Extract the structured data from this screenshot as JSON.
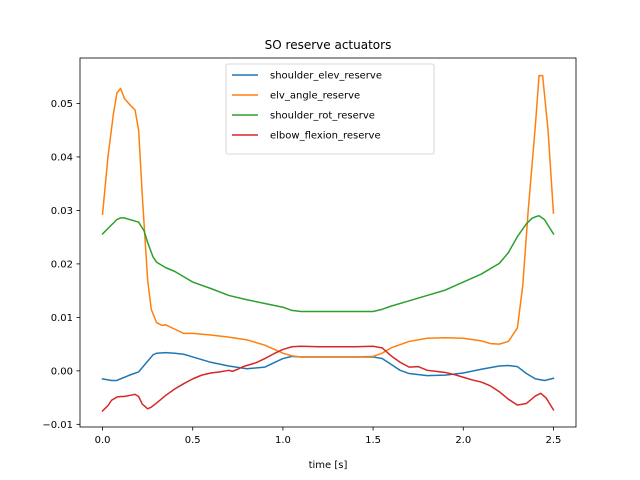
{
  "chart_data": {
    "type": "line",
    "title": "SO reserve actuators",
    "xlabel": "time [s]",
    "ylabel": "",
    "xlim": [
      -0.125,
      2.625
    ],
    "ylim": [
      -0.0105,
      0.0585
    ],
    "xticks": [
      0.0,
      0.5,
      1.0,
      1.5,
      2.0,
      2.5
    ],
    "xtick_labels": [
      "0.0",
      "0.5",
      "1.0",
      "1.5",
      "2.0",
      "2.5"
    ],
    "yticks": [
      -0.01,
      0.0,
      0.01,
      0.02,
      0.03,
      0.04,
      0.05
    ],
    "ytick_labels": [
      "−0.01",
      "0.00",
      "0.01",
      "0.02",
      "0.03",
      "0.04",
      "0.05"
    ],
    "grid": false,
    "legend_position": "top-center",
    "series": [
      {
        "name": "shoulder_elev_reserve",
        "color": "#1f77b4",
        "x": [
          0.0,
          0.05,
          0.08,
          0.1,
          0.15,
          0.2,
          0.25,
          0.28,
          0.3,
          0.35,
          0.4,
          0.45,
          0.5,
          0.6,
          0.7,
          0.8,
          0.9,
          1.0,
          1.05,
          1.1,
          1.2,
          1.3,
          1.4,
          1.5,
          1.55,
          1.6,
          1.65,
          1.7,
          1.8,
          1.9,
          2.0,
          2.1,
          2.2,
          2.25,
          2.3,
          2.35,
          2.4,
          2.45,
          2.5
        ],
        "y": [
          -0.0015,
          -0.0018,
          -0.0018,
          -0.0015,
          -0.0008,
          -0.0002,
          0.0018,
          0.003,
          0.0033,
          0.0034,
          0.0033,
          0.0031,
          0.0026,
          0.0016,
          0.0009,
          0.0004,
          0.0007,
          0.0023,
          0.0027,
          0.0026,
          0.0026,
          0.0026,
          0.0026,
          0.0026,
          0.0023,
          0.0012,
          0.0001,
          -0.0005,
          -0.0009,
          -0.0008,
          -0.0004,
          0.0003,
          0.0009,
          0.001,
          0.0008,
          -0.0005,
          -0.0015,
          -0.0018,
          -0.0014
        ]
      },
      {
        "name": "elv_angle_reserve",
        "color": "#ff7f0e",
        "x": [
          0.0,
          0.03,
          0.06,
          0.08,
          0.1,
          0.12,
          0.15,
          0.18,
          0.2,
          0.22,
          0.25,
          0.27,
          0.3,
          0.33,
          0.35,
          0.4,
          0.45,
          0.5,
          0.6,
          0.7,
          0.8,
          0.9,
          1.0,
          1.05,
          1.1,
          1.2,
          1.3,
          1.4,
          1.5,
          1.55,
          1.6,
          1.7,
          1.8,
          1.9,
          2.0,
          2.1,
          2.15,
          2.2,
          2.25,
          2.3,
          2.33,
          2.36,
          2.4,
          2.42,
          2.44,
          2.47,
          2.5
        ],
        "y": [
          0.0293,
          0.04,
          0.048,
          0.052,
          0.0528,
          0.051,
          0.0498,
          0.0488,
          0.045,
          0.033,
          0.017,
          0.0115,
          0.009,
          0.0085,
          0.0086,
          0.0078,
          0.007,
          0.007,
          0.0067,
          0.0063,
          0.0058,
          0.0048,
          0.0033,
          0.0028,
          0.0026,
          0.0026,
          0.0026,
          0.0026,
          0.0027,
          0.0033,
          0.0043,
          0.0055,
          0.0061,
          0.0062,
          0.0061,
          0.0056,
          0.0051,
          0.005,
          0.0055,
          0.008,
          0.016,
          0.03,
          0.046,
          0.0552,
          0.0552,
          0.045,
          0.0295
        ]
      },
      {
        "name": "shoulder_rot_reserve",
        "color": "#2ca02c",
        "x": [
          0.0,
          0.05,
          0.08,
          0.1,
          0.12,
          0.15,
          0.2,
          0.23,
          0.25,
          0.28,
          0.3,
          0.35,
          0.4,
          0.45,
          0.5,
          0.6,
          0.7,
          0.8,
          0.9,
          1.0,
          1.05,
          1.1,
          1.2,
          1.3,
          1.4,
          1.5,
          1.55,
          1.6,
          1.7,
          1.8,
          1.9,
          2.0,
          2.1,
          2.2,
          2.25,
          2.3,
          2.35,
          2.38,
          2.4,
          2.42,
          2.45,
          2.5
        ],
        "y": [
          0.0256,
          0.0273,
          0.0283,
          0.0286,
          0.0286,
          0.0283,
          0.0278,
          0.0262,
          0.024,
          0.0213,
          0.0203,
          0.0193,
          0.0186,
          0.0176,
          0.0166,
          0.0154,
          0.0141,
          0.0133,
          0.0126,
          0.0119,
          0.0113,
          0.0111,
          0.0111,
          0.0111,
          0.0111,
          0.0111,
          0.0115,
          0.0121,
          0.0131,
          0.0141,
          0.0151,
          0.0166,
          0.0181,
          0.0201,
          0.0221,
          0.0251,
          0.0275,
          0.0285,
          0.0288,
          0.029,
          0.0283,
          0.0256
        ]
      },
      {
        "name": "elbow_flexion_reserve",
        "color": "#d62728",
        "x": [
          0.0,
          0.03,
          0.05,
          0.08,
          0.1,
          0.12,
          0.15,
          0.18,
          0.2,
          0.22,
          0.25,
          0.27,
          0.3,
          0.35,
          0.4,
          0.45,
          0.5,
          0.55,
          0.6,
          0.65,
          0.7,
          0.72,
          0.75,
          0.78,
          0.8,
          0.85,
          0.9,
          0.95,
          1.0,
          1.05,
          1.1,
          1.2,
          1.3,
          1.4,
          1.5,
          1.55,
          1.6,
          1.65,
          1.7,
          1.75,
          1.8,
          1.85,
          1.9,
          1.95,
          2.0,
          2.05,
          2.1,
          2.15,
          2.2,
          2.25,
          2.3,
          2.35,
          2.4,
          2.43,
          2.46,
          2.5
        ],
        "y": [
          -0.0075,
          -0.0065,
          -0.0055,
          -0.0049,
          -0.0048,
          -0.0048,
          -0.0046,
          -0.0044,
          -0.0048,
          -0.0062,
          -0.0071,
          -0.0068,
          -0.006,
          -0.0046,
          -0.0034,
          -0.0024,
          -0.0015,
          -0.0008,
          -0.0004,
          -0.0002,
          0.0001,
          -0.0001,
          0.0003,
          0.0008,
          0.001,
          0.0015,
          0.0023,
          0.0032,
          0.004,
          0.0045,
          0.0046,
          0.0045,
          0.0045,
          0.0045,
          0.0046,
          0.0043,
          0.0028,
          0.0016,
          0.0007,
          0.0008,
          0.0001,
          -0.0001,
          -0.0003,
          -0.0007,
          -0.0012,
          -0.0017,
          -0.0021,
          -0.0028,
          -0.0039,
          -0.0053,
          -0.0064,
          -0.0061,
          -0.0047,
          -0.0042,
          -0.0051,
          -0.0073
        ]
      }
    ]
  }
}
